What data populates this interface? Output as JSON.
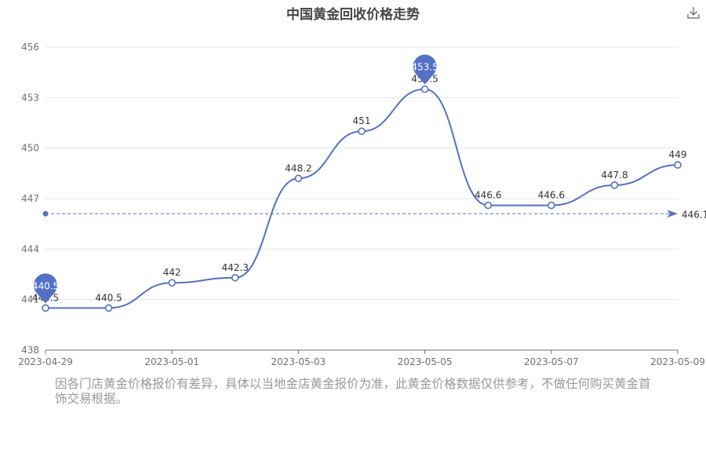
{
  "title": "中国黄金回收价格走势",
  "note": "因各门店黄金价格报价有差异，具体以当地金店黄金报价为准，此黄金价格数据仅供参考，不做任何购买黄金首饰交易根据。",
  "chart_data": {
    "type": "line",
    "categories": [
      "2023-04-29",
      "2023-04-30",
      "2023-05-01",
      "2023-05-02",
      "2023-05-03",
      "2023-05-04",
      "2023-05-05",
      "2023-05-06",
      "2023-05-07",
      "2023-05-08",
      "2023-05-09"
    ],
    "series": [
      {
        "values": [
          440.5,
          440.5,
          442,
          442.3,
          448.2,
          451,
          453.5,
          446.6,
          446.6,
          447.8,
          449
        ]
      }
    ],
    "x_tick_labels": [
      "2023-04-29",
      "2023-05-01",
      "2023-05-03",
      "2023-05-05",
      "2023-05-07",
      "2023-05-09"
    ],
    "y_ticks": [
      438,
      441,
      444,
      447,
      450,
      453,
      456
    ],
    "ylim": [
      438,
      456
    ],
    "mark_points": [
      {
        "label": "440.5",
        "category": "2023-04-29",
        "value": 440.5
      },
      {
        "label": "453.5",
        "category": "2023-05-05",
        "value": 453.5
      }
    ],
    "average_line": {
      "value": 446.1,
      "label": "446.1"
    },
    "grid": true,
    "colors": {
      "series": "#5470c6",
      "axis": "#6e7079",
      "grid": "#e0e6f1",
      "text": "#333333"
    }
  }
}
